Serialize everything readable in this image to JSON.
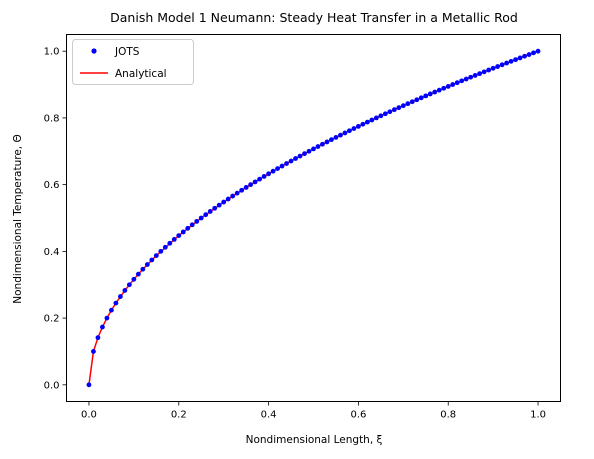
{
  "chart_data": {
    "type": "line",
    "title": "Danish Model 1 Neumann: Steady Heat Transfer in a Metallic Rod",
    "xlabel": "Nondimensional Length, ξ",
    "ylabel": "Nondimensional Temperature, Θ",
    "xlim": [
      -0.05,
      1.05
    ],
    "ylim": [
      -0.05,
      1.05
    ],
    "xticks": [
      0.0,
      0.2,
      0.4,
      0.6,
      0.8,
      1.0
    ],
    "xtick_labels": [
      "0.0",
      "0.2",
      "0.4",
      "0.6",
      "0.8",
      "1.0"
    ],
    "yticks": [
      0.0,
      0.2,
      0.4,
      0.6,
      0.8,
      1.0
    ],
    "ytick_labels": [
      "0.0",
      "0.2",
      "0.4",
      "0.6",
      "0.8",
      "1.0"
    ],
    "grid": false,
    "legend": {
      "placement": "top-left",
      "entries": [
        "JOTS",
        "Analytical"
      ]
    },
    "series": [
      {
        "name": "JOTS",
        "style": "markers",
        "color": "#0000ff",
        "x": [
          0.0,
          0.01,
          0.02,
          0.03,
          0.04,
          0.05,
          0.06,
          0.07,
          0.08,
          0.09,
          0.1,
          0.11,
          0.12,
          0.13,
          0.14,
          0.15,
          0.16,
          0.17,
          0.18,
          0.19,
          0.2,
          0.21,
          0.22,
          0.23,
          0.24,
          0.25,
          0.26,
          0.27,
          0.28,
          0.29,
          0.3,
          0.31,
          0.32,
          0.33,
          0.34,
          0.35,
          0.36,
          0.37,
          0.38,
          0.39,
          0.4,
          0.41,
          0.42,
          0.43,
          0.44,
          0.45,
          0.46,
          0.47,
          0.48,
          0.49,
          0.5,
          0.51,
          0.52,
          0.53,
          0.54,
          0.55,
          0.56,
          0.57,
          0.58,
          0.59,
          0.6,
          0.61,
          0.62,
          0.63,
          0.64,
          0.65,
          0.66,
          0.67,
          0.68,
          0.69,
          0.7,
          0.71,
          0.72,
          0.73,
          0.74,
          0.75,
          0.76,
          0.77,
          0.78,
          0.79,
          0.8,
          0.81,
          0.82,
          0.83,
          0.84,
          0.85,
          0.86,
          0.87,
          0.88,
          0.89,
          0.9,
          0.91,
          0.92,
          0.93,
          0.94,
          0.95,
          0.96,
          0.97,
          0.98,
          0.99,
          1.0
        ],
        "y": [
          0.0,
          0.085,
          0.127,
          0.16,
          0.188,
          0.213,
          0.236,
          0.257,
          0.277,
          0.296,
          0.314,
          0.331,
          0.347,
          0.363,
          0.378,
          0.393,
          0.407,
          0.421,
          0.435,
          0.448,
          0.461,
          0.473,
          0.485,
          0.497,
          0.509,
          0.521,
          0.532,
          0.543,
          0.554,
          0.565,
          0.575,
          0.585,
          0.595,
          0.605,
          0.615,
          0.625,
          0.635,
          0.644,
          0.653,
          0.663,
          0.672,
          0.681,
          0.69,
          0.698,
          0.707,
          0.716,
          0.724,
          0.732,
          0.741,
          0.749,
          0.757,
          0.765,
          0.773,
          0.781,
          0.789,
          0.796,
          0.804,
          0.811,
          0.819,
          0.826,
          0.834,
          0.841,
          0.848,
          0.855,
          0.862,
          0.869,
          0.876,
          0.883,
          0.89,
          0.897,
          0.904,
          0.911,
          0.917,
          0.924,
          0.93,
          0.937,
          0.943,
          0.95,
          0.956,
          0.962,
          0.969,
          0.975,
          0.981,
          0.987,
          0.993,
          0.999,
          1.005,
          1.011,
          1.017,
          1.023,
          1.029,
          1.034,
          1.04,
          1.046,
          1.051,
          1.057,
          1.063,
          1.068,
          1.074,
          1.079,
          1.0
        ]
      },
      {
        "name": "Analytical",
        "style": "line",
        "color": "#ff0000",
        "x": [
          0.0,
          0.01,
          0.02,
          0.03,
          0.04,
          0.05,
          0.06,
          0.08,
          0.1,
          0.12,
          0.15,
          0.2,
          0.25,
          0.3,
          0.35,
          0.4,
          0.45,
          0.5,
          0.55,
          0.6,
          0.65,
          0.7,
          0.75,
          0.8,
          0.85,
          0.9,
          0.95,
          1.0
        ],
        "y": [
          0.0,
          0.085,
          0.127,
          0.16,
          0.188,
          0.213,
          0.236,
          0.277,
          0.314,
          0.347,
          0.393,
          0.461,
          0.521,
          0.575,
          0.625,
          0.672,
          0.716,
          0.757,
          0.796,
          0.834,
          0.869,
          0.904,
          0.937,
          0.969,
          0.999,
          1.029,
          1.057,
          1.0
        ]
      }
    ]
  }
}
